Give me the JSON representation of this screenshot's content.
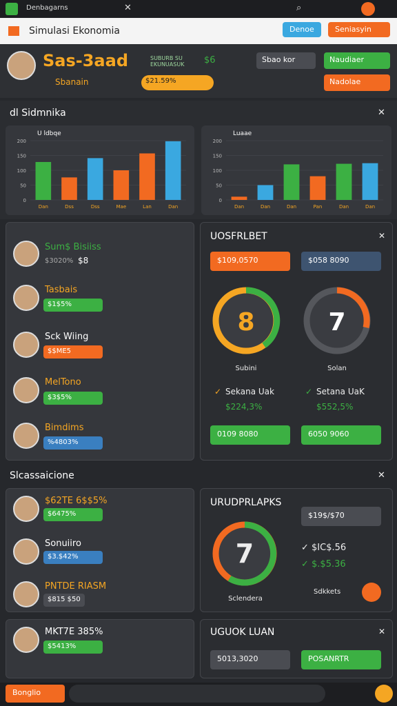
{
  "browser": {
    "tab": "Denbagarns"
  },
  "app": {
    "title": "Simulasi Ekonomia",
    "button_blue": "Denoe",
    "button_orange": "Seniasyin"
  },
  "header": {
    "name": "Sas-3aad",
    "subtitle": "Sbanain",
    "stat_line1": "SUBURB SU",
    "stat_line2": "EKUNUASUK",
    "stat_value": "$6",
    "badge": "$21.59%",
    "select": "Sbao kor",
    "button_green": "Naudiaer",
    "button_orange": "Nadolae"
  },
  "panel1": {
    "title": "dl Sidmnika",
    "charts": [
      {
        "type": "bar",
        "title": "U ldbqe",
        "categories": [
          "Dan",
          "Dss",
          "Dss",
          "Mae",
          "Lan",
          "Dan"
        ],
        "values": [
          128,
          76,
          141,
          100,
          157,
          198
        ],
        "colors": [
          "#3cb043",
          "#f26a21",
          "#3aa8e0",
          "#f26a21",
          "#f26a21",
          "#3aa8e0"
        ],
        "ylim": [
          0,
          200
        ],
        "yticks": [
          0,
          50,
          100,
          150,
          200
        ]
      },
      {
        "type": "bar",
        "title": "Luaae",
        "categories": [
          "Dan",
          "Dan",
          "Dan",
          "Pan",
          "Dan",
          "Dan"
        ],
        "values": [
          11,
          50,
          120,
          80,
          122,
          124
        ],
        "colors": [
          "#f26a21",
          "#3aa8e0",
          "#3cb043",
          "#f26a21",
          "#3cb043",
          "#3aa8e0"
        ],
        "ylim": [
          0,
          200
        ],
        "yticks": [
          0,
          50,
          100,
          150,
          200
        ]
      }
    ]
  },
  "players": [
    {
      "name": "Sum$ Bisiiss",
      "badge": "$3020%",
      "value": "$8"
    },
    {
      "name": "Tasbais",
      "badge": "$1$5%"
    },
    {
      "name": "Sck Wiing",
      "badge": "$$ME5"
    },
    {
      "name": "MelTono",
      "badge": "$3$5%"
    },
    {
      "name": "Bimdims",
      "badge": "%4803%"
    }
  ],
  "market": {
    "title": "UOSFRLBET",
    "input_orange": "$109,0570",
    "input_dark": "$058 8090",
    "gauges": [
      {
        "value": "8",
        "label": "Subini"
      },
      {
        "value": "7",
        "label": "Solan"
      }
    ],
    "checks": [
      {
        "label": "Sekana Uak",
        "value": "$224,3%"
      },
      {
        "label": "Setana UaK",
        "value": "$552,5%"
      }
    ],
    "buttons": [
      "0109 8080",
      "6050 9060"
    ]
  },
  "section2": {
    "title": "Slcassaicione",
    "rows": [
      {
        "name": "$62TE 6$$5%",
        "badge": "$6475%"
      },
      {
        "name": "Sonuiiro",
        "badge": "$3.$42%"
      },
      {
        "name": "PNTDE RIASM",
        "badge": "$815 $50"
      }
    ],
    "panel": {
      "title": "URUDPRLAPKS",
      "input": "$19$/$70",
      "gauge": "7",
      "gauge_label": "Sclendera",
      "check1": "$IC$.56",
      "check2": "$.$5.36",
      "note": "Sdkkets"
    }
  },
  "section3": {
    "row": {
      "name": "MKT7E 385%",
      "badge": "$5413%"
    },
    "panel": {
      "title": "UGUOK LUAN",
      "input": "5013,3020",
      "button": "POSANRTR"
    }
  },
  "footer": {
    "button": "Bonglio"
  }
}
